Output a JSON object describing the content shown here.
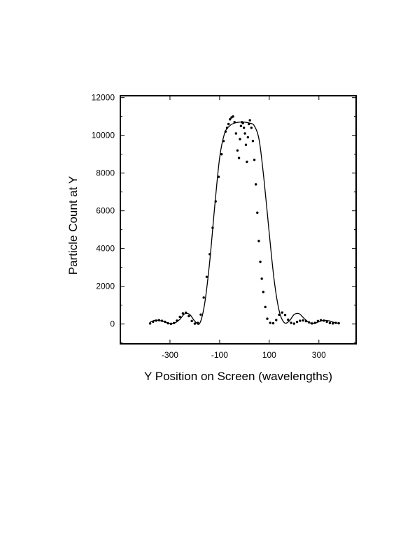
{
  "chart_data": {
    "type": "scatter",
    "title": "",
    "xlabel": "Y Position on Screen (wavelengths)",
    "ylabel": "Particle Count at Y",
    "xlim": [
      -500,
      450
    ],
    "ylim": [
      -1050,
      12100
    ],
    "x_ticks": [
      -300,
      -100,
      100,
      300
    ],
    "y_ticks": [
      0,
      2000,
      4000,
      6000,
      8000,
      10000,
      12000
    ],
    "x_tick_labels": [
      "-300",
      "-100",
      "100",
      "300"
    ],
    "y_tick_labels": [
      "0",
      "2000",
      "4000",
      "6000",
      "8000",
      "10000",
      "12000"
    ],
    "grid": false,
    "legend": "none",
    "colors": {
      "data": "#000000",
      "fit": "#000000",
      "frame": "#000000"
    },
    "series": [
      {
        "kind": "points",
        "x": [
          -380,
          -368,
          -356,
          -344,
          -332,
          -320,
          -308,
          -296,
          -284,
          -272,
          -260,
          -248,
          -236,
          -224,
          -212,
          -200,
          -188,
          -176,
          -164,
          -152,
          -140,
          -128,
          -116,
          -104,
          -92,
          -84,
          -76,
          -70,
          -64,
          -58,
          -52,
          -46,
          -40,
          -34,
          -28,
          -22,
          -18,
          -14,
          -10,
          -6,
          -2,
          2,
          6,
          10,
          14,
          18,
          22,
          28,
          34,
          40,
          46,
          52,
          58,
          64,
          70,
          76,
          84,
          92,
          104,
          116,
          128,
          140,
          152,
          164,
          176,
          188,
          200,
          212,
          224,
          236,
          248,
          260,
          272,
          284,
          296,
          308,
          320,
          332,
          344,
          356,
          368,
          380
        ],
        "y": [
          30,
          120,
          180,
          200,
          170,
          120,
          40,
          10,
          50,
          180,
          380,
          560,
          600,
          420,
          160,
          20,
          60,
          500,
          1400,
          2500,
          3700,
          5100,
          6500,
          7800,
          9000,
          9700,
          10200,
          10400,
          10600,
          10850,
          10950,
          11000,
          10700,
          10100,
          9200,
          8800,
          9800,
          10500,
          10700,
          10650,
          10400,
          10100,
          9500,
          8600,
          9900,
          10600,
          10800,
          10400,
          9700,
          8700,
          7400,
          5900,
          4400,
          3300,
          2400,
          1700,
          900,
          280,
          60,
          40,
          210,
          490,
          610,
          480,
          230,
          60,
          20,
          110,
          170,
          190,
          150,
          90,
          30,
          60,
          160,
          200,
          180,
          120,
          50,
          30,
          60,
          40
        ]
      },
      {
        "kind": "line",
        "x": [
          -380,
          -360,
          -340,
          -320,
          -300,
          -280,
          -260,
          -240,
          -220,
          -200,
          -180,
          -160,
          -140,
          -120,
          -100,
          -80,
          -60,
          -40,
          -20,
          0,
          20,
          40,
          60,
          80,
          100,
          120,
          140,
          160,
          180,
          200,
          220,
          240,
          260,
          280,
          300,
          320,
          340,
          360,
          380
        ],
        "y": [
          100,
          200,
          180,
          100,
          30,
          60,
          250,
          550,
          500,
          150,
          40,
          1100,
          3300,
          6200,
          8800,
          10100,
          10500,
          10650,
          10700,
          10700,
          10650,
          10500,
          9700,
          7500,
          4800,
          2300,
          700,
          80,
          150,
          500,
          550,
          300,
          80,
          30,
          120,
          200,
          170,
          90,
          40
        ]
      }
    ]
  }
}
